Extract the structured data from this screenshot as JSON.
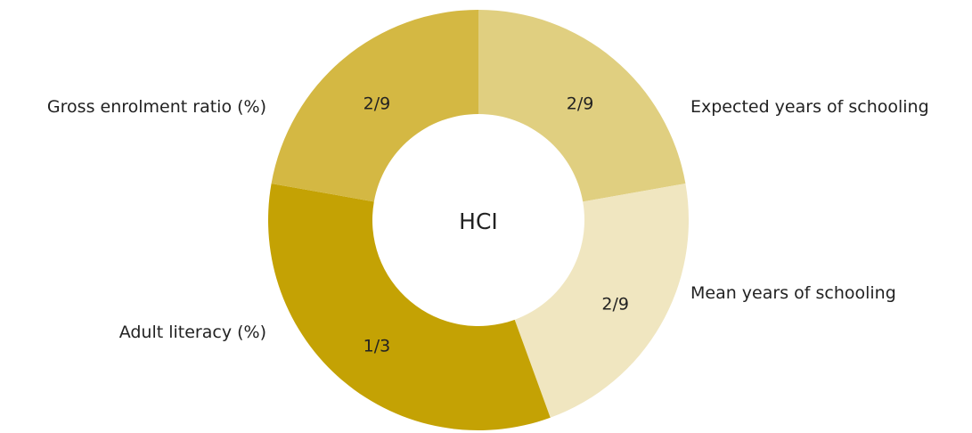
{
  "chart_data": {
    "type": "donut",
    "center_text": "HCI",
    "series": [
      {
        "name": "Expected years of schooling",
        "color": "#e0cf80"
      },
      {
        "name": "Mean years of schooling",
        "color": "#f0e6c0"
      },
      {
        "name": "Adult literacy (%)",
        "color": "#c4a204"
      },
      {
        "name": "Gross enrolment ratio (%)",
        "color": "#d4b843"
      }
    ],
    "values": [
      0.2222,
      0.2222,
      0.3333,
      0.2222
    ],
    "value_labels": [
      "2/9",
      "2/9",
      "1/3",
      "2/9"
    ]
  }
}
